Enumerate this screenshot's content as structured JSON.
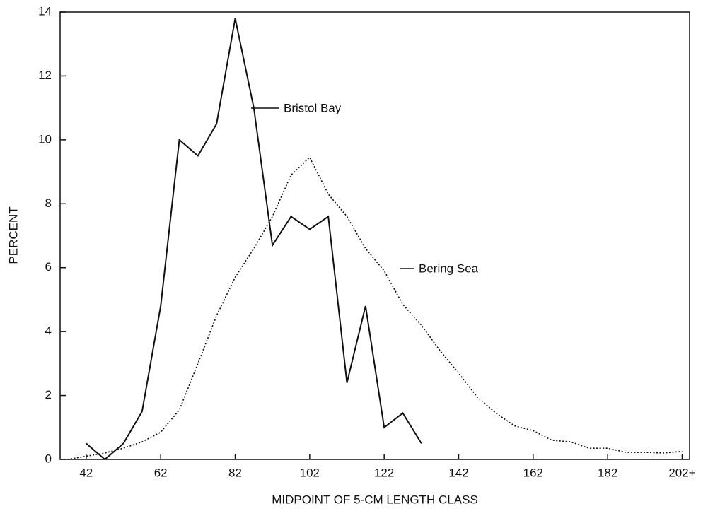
{
  "chart_data": {
    "type": "line",
    "xlabel": "MIDPOINT OF 5-CM LENGTH CLASS",
    "ylabel": "PERCENT",
    "xlim": [
      35,
      204
    ],
    "xticks": [
      42,
      62,
      82,
      102,
      122,
      142,
      162,
      182,
      {
        "value": 202,
        "label": "202+"
      }
    ],
    "ylim": [
      0,
      14
    ],
    "yticks": [
      0,
      2,
      4,
      6,
      8,
      10,
      12,
      14
    ],
    "grid": false,
    "series": [
      {
        "name": "Bristol Bay",
        "color": "#111111",
        "style": "solid",
        "x": [
          42,
          47,
          52,
          57,
          62,
          67,
          72,
          77,
          82,
          87,
          92,
          97,
          102,
          107,
          112,
          117,
          122,
          127,
          132
        ],
        "values": [
          0.5,
          0,
          0.5,
          1.5,
          4.8,
          10,
          9.5,
          10.5,
          13.8,
          11.0,
          6.7,
          7.6,
          7.2,
          7.6,
          2.4,
          4.8,
          1.0,
          1.45,
          0.5
        ]
      },
      {
        "name": "Bering Sea",
        "color": "#111111",
        "style": "dotted",
        "x": [
          37,
          42,
          47,
          52,
          57,
          62,
          67,
          72,
          77,
          82,
          87,
          92,
          97,
          102,
          107,
          112,
          117,
          122,
          127,
          132,
          137,
          142,
          147,
          152,
          157,
          162,
          167,
          172,
          177,
          182,
          187,
          192,
          197,
          202
        ],
        "values": [
          0,
          0.1,
          0.2,
          0.35,
          0.55,
          0.85,
          1.55,
          3.0,
          4.5,
          5.7,
          6.6,
          7.6,
          8.9,
          9.45,
          8.3,
          7.6,
          6.6,
          5.9,
          4.85,
          4.2,
          3.4,
          2.7,
          1.95,
          1.45,
          1.05,
          0.9,
          0.6,
          0.55,
          0.35,
          0.35,
          0.22,
          0.22,
          0.2,
          0.25
        ]
      }
    ]
  }
}
